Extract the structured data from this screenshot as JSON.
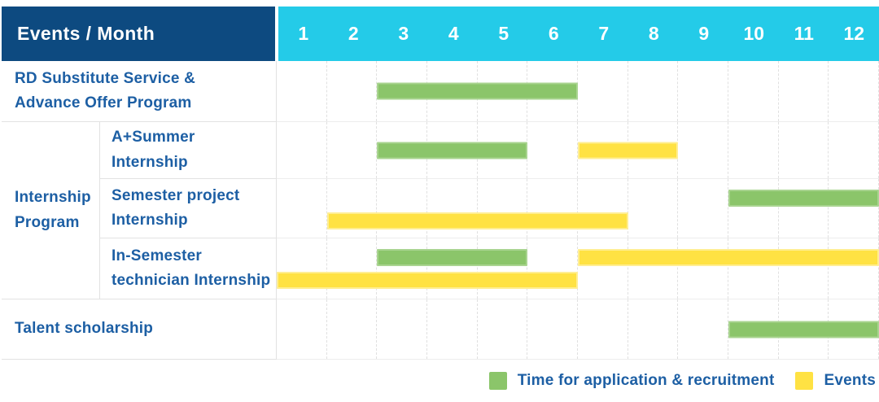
{
  "header": {
    "label": "Events / Month",
    "months": [
      "1",
      "2",
      "3",
      "4",
      "5",
      "6",
      "7",
      "8",
      "9",
      "10",
      "11",
      "12"
    ]
  },
  "colors": {
    "header_bg": "#0d4a80",
    "months_bg": "#24cbe8",
    "label_text": "#1d5fa4",
    "application": "#8bc56a",
    "event": "#ffe243"
  },
  "chart_data": {
    "type": "table",
    "subtype": "gantt-schedule",
    "x_unit": "month",
    "x_range": [
      1,
      12
    ],
    "grid": true,
    "rows": [
      {
        "group": "",
        "label": "RD Substitute Service &\nAdvance Offer Program",
        "bars": [
          {
            "type": "application",
            "start": 3,
            "end": 6,
            "lane": "center"
          }
        ]
      },
      {
        "group": "Internship\nProgram",
        "label": "A+Summer\nInternship",
        "bars": [
          {
            "type": "application",
            "start": 3,
            "end": 5,
            "lane": "center"
          },
          {
            "type": "event",
            "start": 7,
            "end": 8,
            "lane": "center"
          }
        ]
      },
      {
        "group": "Internship\nProgram",
        "label": "Semester project\nInternship",
        "bars": [
          {
            "type": "application",
            "start": 10,
            "end": 12,
            "lane": "top"
          },
          {
            "type": "event",
            "start": 2,
            "end": 7,
            "lane": "bottom"
          }
        ]
      },
      {
        "group": "Internship\nProgram",
        "label": "In-Semester\ntechnician Internship",
        "bars": [
          {
            "type": "application",
            "start": 3,
            "end": 5,
            "lane": "top"
          },
          {
            "type": "event",
            "start": 7,
            "end": 12,
            "lane": "top"
          },
          {
            "type": "event",
            "start": 1,
            "end": 6,
            "lane": "bottom"
          }
        ]
      },
      {
        "group": "",
        "label": "Talent scholarship",
        "bars": [
          {
            "type": "application",
            "start": 10,
            "end": 12,
            "lane": "center"
          }
        ]
      }
    ],
    "legend": [
      {
        "type": "application",
        "label": "Time for application & recruitment",
        "color": "#8bc56a"
      },
      {
        "type": "event",
        "label": "Events",
        "color": "#ffe243"
      }
    ],
    "legend_position": "bottom-right"
  }
}
